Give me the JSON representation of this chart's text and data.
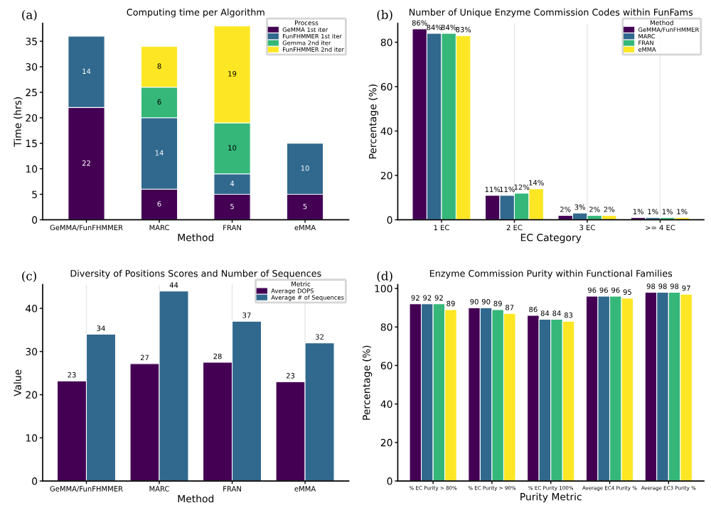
{
  "chart_data": [
    {
      "type": "bar",
      "title": "Computing time per Algorithm",
      "xlabel": "Method",
      "ylabel": "Time (hrs)",
      "annotations": [
        "(a)"
      ],
      "categories": [
        "GeMMA/FunFHMMER",
        "MARC",
        "FRAN",
        "eMMA"
      ],
      "stacked": true,
      "data_labels": true,
      "legend": "top right",
      "legend_title": "Process",
      "grid": false,
      "ylim": [
        0,
        38.5
      ],
      "yticks": [
        0,
        5,
        10,
        15,
        20,
        25,
        30,
        35
      ],
      "series": [
        {
          "name": "GeMMA 1st iter",
          "color": "#440154",
          "values": [
            22,
            6,
            5,
            5
          ]
        },
        {
          "name": "FunFHMMER 1st iter",
          "color": "#31688e",
          "values": [
            14,
            14,
            4,
            10
          ]
        },
        {
          "name": "Gemma 2nd iter",
          "color": "#35b779",
          "values": [
            null,
            6,
            10,
            null
          ]
        },
        {
          "name": "FunFHMMER 2nd iter",
          "color": "#fde725",
          "values": [
            null,
            8,
            19,
            null
          ]
        }
      ]
    },
    {
      "type": "bar",
      "title": "Number of Unique Enzyme Commission Codes within FunFams",
      "xlabel": "EC Category",
      "ylabel": "Percentage (%)",
      "annotations": [
        "(b)"
      ],
      "categories": [
        "1 EC",
        "2 EC",
        "3 EC",
        ">= 4 EC"
      ],
      "legend": "top right",
      "legend_title": "Method",
      "grid": "x",
      "ylim": [
        0,
        88.5
      ],
      "yticks": [
        0,
        20,
        40,
        60,
        80
      ],
      "series": [
        {
          "name": "GeMMA/FunFHMMER",
          "color": "#440154",
          "values": [
            86,
            11,
            2,
            1
          ],
          "value_labels": [
            "86%",
            "11%",
            "2%",
            "1%"
          ]
        },
        {
          "name": "MARC",
          "color": "#31688e",
          "values": [
            84,
            11,
            3,
            1
          ],
          "value_labels": [
            "84%",
            "11%",
            "3%",
            "1%"
          ]
        },
        {
          "name": "FRAN",
          "color": "#35b779",
          "values": [
            84,
            12,
            2,
            1
          ],
          "value_labels": [
            "84%",
            "12%",
            "2%",
            "1%"
          ]
        },
        {
          "name": "eMMA",
          "color": "#fde725",
          "values": [
            83,
            14,
            2,
            1
          ],
          "value_labels": [
            "83%",
            "14%",
            "2%",
            "1%"
          ]
        }
      ]
    },
    {
      "type": "bar",
      "title": "Diversity of Positions Scores and Number of Sequences",
      "xlabel": "Method",
      "ylabel": "Value",
      "annotations": [
        "(c)"
      ],
      "categories": [
        "GeMMA/FunFHMMER",
        "MARC",
        "FRAN",
        "eMMA"
      ],
      "legend": "top right",
      "legend_title": "Metric",
      "grid": "x",
      "ylim": [
        0,
        45.5
      ],
      "yticks": [
        0,
        10,
        20,
        30,
        40
      ],
      "series": [
        {
          "name": "Average DOPS",
          "color": "#440154",
          "values": [
            23.2,
            27.2,
            27.5,
            23.0
          ],
          "value_labels": [
            "23",
            "27",
            "28",
            "23"
          ]
        },
        {
          "name": "Average # of Sequences",
          "color": "#31688e",
          "values": [
            34,
            44,
            37,
            32
          ],
          "value_labels": [
            "34",
            "44",
            "37",
            "32"
          ]
        }
      ]
    },
    {
      "type": "bar",
      "title": "Enzyme Commission Purity within Functional Families",
      "xlabel": "Purity Metric",
      "ylabel": "Percentage (%)",
      "annotations": [
        "(d)"
      ],
      "categories": [
        "% EC Purity > 80%",
        "% EC Purity > 90%",
        "% EC Purity 100%",
        "Average EC4 Purity %",
        "Average EC3 Purity %"
      ],
      "data_labels": true,
      "grid": false,
      "ylim": [
        0,
        102
      ],
      "yticks": [
        0,
        20,
        40,
        60,
        80,
        100
      ],
      "series": [
        {
          "color": "#440154",
          "values": [
            92,
            90,
            86,
            96,
            98
          ]
        },
        {
          "color": "#31688e",
          "values": [
            92,
            90,
            84,
            96,
            98
          ]
        },
        {
          "color": "#35b779",
          "values": [
            92,
            89,
            84,
            96,
            98
          ]
        },
        {
          "color": "#fde725",
          "values": [
            89,
            87,
            83,
            95,
            97
          ]
        }
      ]
    }
  ]
}
